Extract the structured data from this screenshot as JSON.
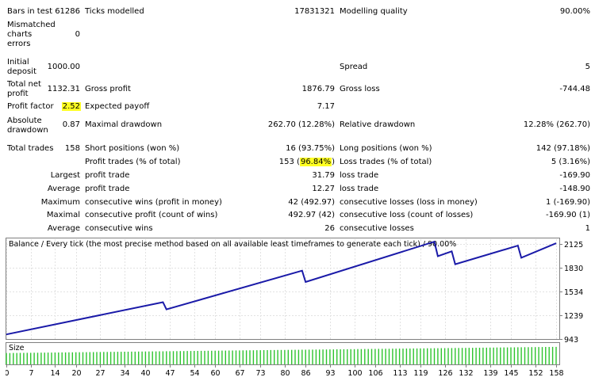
{
  "report": {
    "bars_in_test": {
      "label": "Bars in test",
      "value": "61286"
    },
    "ticks_modelled": {
      "label": "Ticks modelled",
      "value": "17831321"
    },
    "modelling_quality": {
      "label": "Modelling quality",
      "value": "90.00%"
    },
    "mismatched": {
      "label_1": "Mismatched",
      "label_2": "charts",
      "label_3": "errors",
      "value": "0"
    },
    "initial_deposit": {
      "label_1": "Initial",
      "label_2": "deposit",
      "value": "1000.00"
    },
    "spread": {
      "label": "Spread",
      "value": "5"
    },
    "total_net_profit": {
      "label_1": "Total net",
      "label_2": "profit",
      "value": "1132.31"
    },
    "gross_profit": {
      "label": "Gross profit",
      "value": "1876.79"
    },
    "gross_loss": {
      "label": "Gross loss",
      "value": "-744.48"
    },
    "profit_factor": {
      "label": "Profit factor",
      "value": "2.52"
    },
    "expected_payoff": {
      "label": "Expected payoff",
      "value": "7.17"
    },
    "absolute_drawdown": {
      "label_1": "Absolute",
      "label_2": "drawdown",
      "value": "0.87"
    },
    "maximal_drawdown": {
      "label": "Maximal drawdown",
      "value": "262.70 (12.28%)"
    },
    "relative_drawdown": {
      "label": "Relative drawdown",
      "value": "12.28% (262.70)"
    },
    "total_trades": {
      "label": "Total trades",
      "value": "158"
    },
    "short_positions": {
      "label": "Short positions (won %)",
      "value": "16 (93.75%)"
    },
    "long_positions": {
      "label": "Long positions (won %)",
      "value": "142 (97.18%)"
    },
    "profit_trades": {
      "label": "Profit trades (% of total)",
      "count": "153",
      "pct": "96.84%"
    },
    "loss_trades": {
      "label": "Loss trades (% of total)",
      "value": "5 (3.16%)"
    },
    "largest": {
      "label": "Largest",
      "profit_label": "profit trade",
      "profit_value": "31.79",
      "loss_label": "loss trade",
      "loss_value": "-169.90"
    },
    "average": {
      "label": "Average",
      "profit_label": "profit trade",
      "profit_value": "12.27",
      "loss_label": "loss trade",
      "loss_value": "-148.90"
    },
    "maximum": {
      "label": "Maximum",
      "profit_label": "consecutive wins (profit in money)",
      "profit_value": "42 (492.97)",
      "loss_label": "consecutive losses (loss in money)",
      "loss_value": "1 (-169.90)"
    },
    "maximal": {
      "label": "Maximal",
      "profit_label": "consecutive profit (count of wins)",
      "profit_value": "492.97 (42)",
      "loss_label": "consecutive loss (count of losses)",
      "loss_value": "-169.90 (1)"
    },
    "average_consec": {
      "label": "Average",
      "profit_label": "consecutive wins",
      "profit_value": "26",
      "loss_label": "consecutive losses",
      "loss_value": "1"
    }
  },
  "chart_data": {
    "type": "line",
    "title": "Balance / Every tick (the most precise method based on all available least timeframes to generate each tick) / 90.00%",
    "size_label": "Size",
    "ylim": [
      943,
      2180
    ],
    "y_ticks": [
      "2125",
      "1830",
      "1534",
      "1239",
      "943"
    ],
    "x_ticks": [
      "0",
      "7",
      "14",
      "20",
      "27",
      "34",
      "40",
      "47",
      "54",
      "60",
      "67",
      "73",
      "80",
      "86",
      "93",
      "100",
      "106",
      "113",
      "119",
      "126",
      "132",
      "139",
      "145",
      "152",
      "158"
    ],
    "x_max": 158,
    "series": [
      {
        "x": [
          0,
          45,
          46,
          85,
          86,
          123,
          124,
          128,
          129,
          147,
          148,
          158
        ],
        "values": [
          1000,
          1400,
          1310,
          1790,
          1650,
          2150,
          1970,
          2030,
          1870,
          2100,
          1950,
          2130
        ]
      }
    ],
    "line_color": "#1a1aa8",
    "size_bar_color": "#2ec42e",
    "size_values": {
      "start": 0.55,
      "end": 0.85
    }
  }
}
